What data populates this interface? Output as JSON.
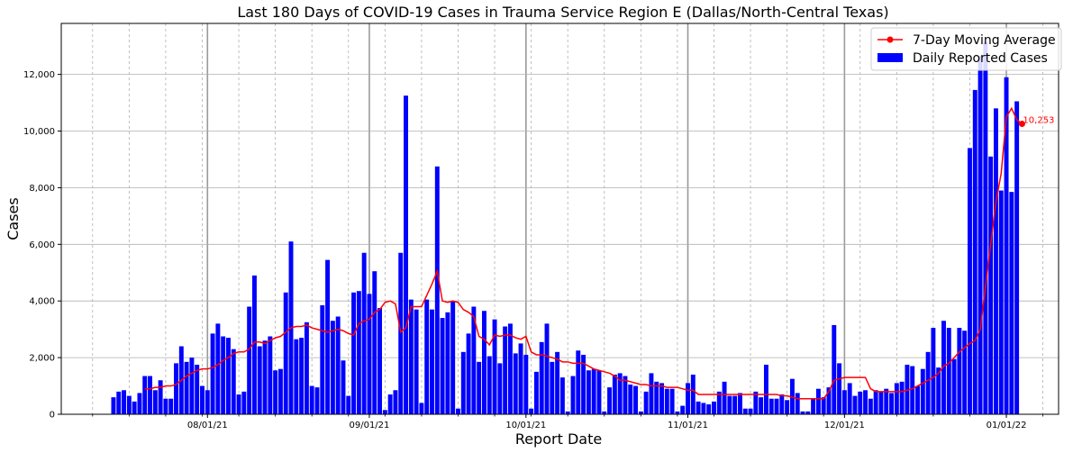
{
  "chart_data": {
    "type": "bar",
    "title": "Last 180 Days of COVID-19 Cases in Trauma Service Region E (Dallas/North-Central Texas)",
    "xlabel": "Report Date",
    "ylabel": "Cases",
    "ylim": [
      0,
      13800
    ],
    "y_ticks": [
      0,
      2000,
      4000,
      6000,
      8000,
      10000,
      12000
    ],
    "y_tick_labels": [
      "0",
      "2,000",
      "4,000",
      "6,000",
      "8,000",
      "10,000",
      "12,000"
    ],
    "x_tick_labels": [
      {
        "label": "08/01/21",
        "day": 18
      },
      {
        "label": "09/01/21",
        "day": 49
      },
      {
        "label": "10/01/21",
        "day": 79
      },
      {
        "label": "11/01/21",
        "day": 110
      },
      {
        "label": "12/01/21",
        "day": 140
      },
      {
        "label": "01/01/22",
        "day": 171
      }
    ],
    "grid": true,
    "legend_position": "top-right",
    "start_date": "2021-07-14",
    "series": [
      {
        "name": "Daily Reported Cases",
        "kind": "bar",
        "color": "#0000ff",
        "values": [
          600,
          800,
          850,
          650,
          450,
          750,
          1350,
          1350,
          850,
          1200,
          550,
          550,
          1800,
          2400,
          1850,
          2000,
          1750,
          1000,
          850,
          2850,
          3200,
          2750,
          2700,
          2300,
          700,
          800,
          3800,
          4900,
          2400,
          2600,
          2750,
          1550,
          1600,
          4300,
          6100,
          2650,
          2700,
          3250,
          1000,
          950,
          3850,
          5450,
          3300,
          3450,
          1900,
          650,
          4300,
          4350,
          5700,
          4250,
          5050,
          3750,
          150,
          700,
          850,
          5700,
          11250,
          4050,
          3700,
          400,
          4050,
          3700,
          8750,
          3400,
          3600,
          4000,
          200,
          2200,
          2850,
          3800,
          1850,
          3650,
          2050,
          3350,
          1800,
          3100,
          3200,
          2150,
          2500,
          2100,
          200,
          1500,
          2550,
          3200,
          1850,
          2200,
          1300,
          100,
          1350,
          2250,
          2100,
          1550,
          1600,
          1550,
          100,
          950,
          1400,
          1450,
          1350,
          1050,
          1000,
          100,
          800,
          1450,
          1150,
          1100,
          900,
          900,
          100,
          300,
          1100,
          1400,
          450,
          400,
          350,
          450,
          800,
          1150,
          650,
          650,
          750,
          200,
          200,
          800,
          600,
          1750,
          550,
          550,
          700,
          500,
          1250,
          750,
          100,
          100,
          550,
          900,
          600,
          950,
          3150,
          1800,
          850,
          1100,
          650,
          800,
          850,
          550,
          850,
          800,
          900,
          750,
          1100,
          1150,
          1750,
          1700,
          1000,
          1600,
          2200,
          3050,
          1650,
          3300,
          3050,
          1950,
          3050,
          2950,
          9400,
          11450,
          12650,
          13150,
          9100,
          10800,
          7900,
          11900,
          7850,
          11050
        ],
        "annotation_count": 0
      },
      {
        "name": "7-Day Moving Average",
        "kind": "line",
        "color": "#ff0000",
        "values": [
          null,
          null,
          null,
          null,
          null,
          null,
          900,
          900,
          950,
          950,
          1000,
          1000,
          1050,
          1200,
          1350,
          1450,
          1550,
          1600,
          1600,
          1650,
          1750,
          1900,
          2000,
          2150,
          2200,
          2200,
          2300,
          2550,
          2550,
          2500,
          2600,
          2700,
          2750,
          2900,
          3050,
          3100,
          3100,
          3150,
          3050,
          3000,
          2950,
          2900,
          2950,
          3000,
          2950,
          2850,
          2800,
          3200,
          3300,
          3350,
          3600,
          3700,
          3950,
          4000,
          3900,
          2900,
          3050,
          3800,
          3800,
          3800,
          4200,
          4600,
          5050,
          4000,
          3950,
          4000,
          3950,
          3700,
          3600,
          3450,
          2750,
          2650,
          2450,
          2800,
          2750,
          2800,
          2800,
          2700,
          2650,
          2750,
          2200,
          2100,
          2100,
          2050,
          2000,
          1950,
          1850,
          1850,
          1800,
          1800,
          1800,
          1700,
          1600,
          1550,
          1500,
          1450,
          1350,
          1200,
          1200,
          1150,
          1100,
          1050,
          1050,
          1000,
          1000,
          1000,
          950,
          950,
          950,
          900,
          850,
          850,
          700,
          700,
          700,
          700,
          700,
          700,
          700,
          700,
          700,
          700,
          700,
          700,
          700,
          700,
          700,
          700,
          650,
          650,
          600,
          550,
          550,
          550,
          550,
          550,
          550,
          800,
          1200,
          1250,
          1300,
          1300,
          1300,
          1300,
          1300,
          900,
          800,
          800,
          800,
          800,
          800,
          800,
          850,
          900,
          1000,
          1100,
          1200,
          1300,
          1450,
          1700,
          1800,
          2000,
          2200,
          2350,
          2500,
          2600,
          3000,
          4500,
          6000,
          7500,
          8500,
          10500,
          10800,
          10400,
          10253
        ],
        "last_label": "10,253"
      }
    ]
  }
}
